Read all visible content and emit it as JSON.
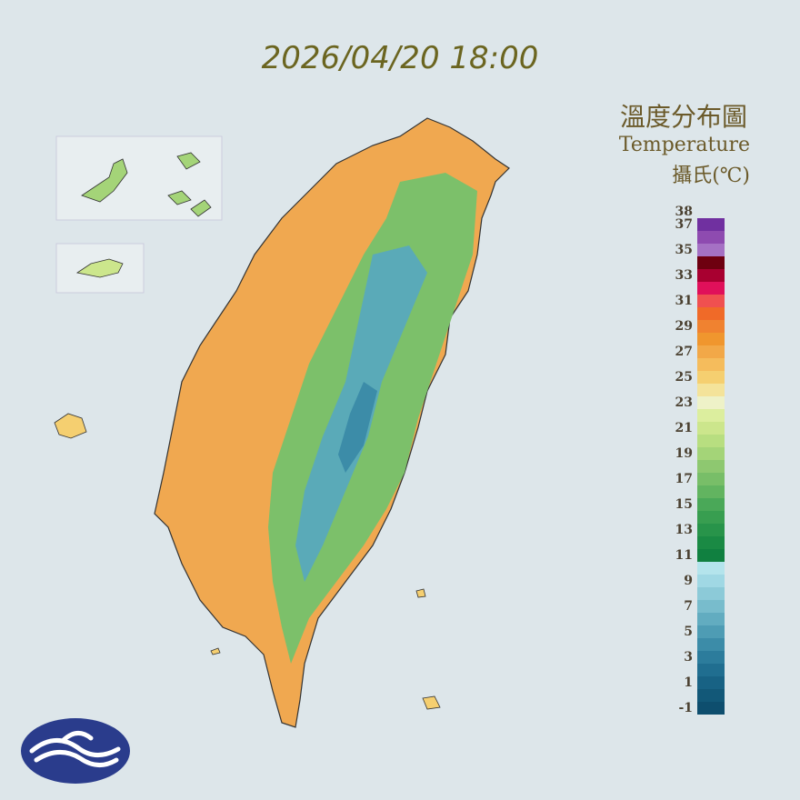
{
  "header": {
    "datetime": "2026/04/20 18:00"
  },
  "legend": {
    "title": "溫度分布圖",
    "subtitle": "Temperature",
    "unit": "攝氏(℃)",
    "labels": [
      38,
      37,
      35,
      33,
      31,
      29,
      27,
      25,
      23,
      21,
      19,
      17,
      15,
      13,
      11,
      9,
      7,
      5,
      3,
      1,
      -1
    ],
    "colors": [
      "#0e4e6e",
      "#125878",
      "#186284",
      "#206e90",
      "#2c7c9c",
      "#3c8ca8",
      "#4e9cb4",
      "#62acc0",
      "#78bccc",
      "#8ccad8",
      "#a0d8e4",
      "#b4e4ec",
      "#108040",
      "#1a8a44",
      "#28944a",
      "#389e50",
      "#4aa858",
      "#62b460",
      "#78be68",
      "#8ec870",
      "#a4d478",
      "#b8de80",
      "#cce68c",
      "#dcee9e",
      "#eef2c8",
      "#f4e39a",
      "#f5cf70",
      "#f5bc5c",
      "#f2a848",
      "#f0962e",
      "#f08230",
      "#f06a28",
      "#f05050",
      "#e0105a",
      "#a80030",
      "#6e0010",
      "#a571c4",
      "#8e4bb0",
      "#7030a0"
    ]
  }
}
